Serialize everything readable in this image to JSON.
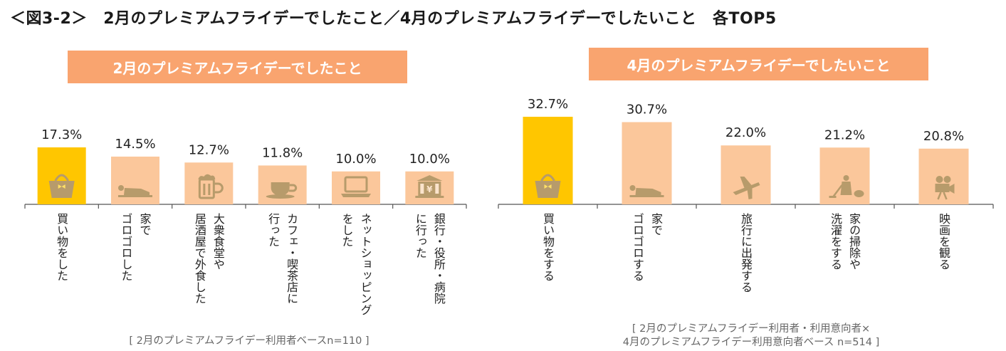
{
  "title": "＜図3-2＞　2月のプレミアムフライデーでしたこと／4月のプレミアムフライデーでしたいこと　各TOP5",
  "colors": {
    "banner": "#F9A46F",
    "top_bar": "#FFC600",
    "other_bar": "#FBC79B",
    "icon": "#B79B6B",
    "axis": "#555555"
  },
  "chart_data": [
    {
      "type": "bar",
      "title": "2月のプレミアムフライデーでしたこと",
      "categories": [
        [
          "買い物をした"
        ],
        [
          "家で",
          "ゴロゴロした"
        ],
        [
          "大衆食堂や",
          "居酒屋で外食した"
        ],
        [
          "カフェ・喫茶店に",
          "行った"
        ],
        [
          "ネットショッピング",
          "をした"
        ],
        [
          "銀行・役所・病院",
          "に行った"
        ]
      ],
      "values": [
        17.3,
        14.5,
        12.7,
        11.8,
        10.0,
        10.0
      ],
      "value_labels": [
        "17.3%",
        "14.5%",
        "12.7%",
        "11.8%",
        "10.0%",
        "10.0%"
      ],
      "icons": [
        "bag-icon",
        "lying-person-icon",
        "beer-mug-icon",
        "coffee-cup-icon",
        "laptop-icon",
        "bank-icon"
      ],
      "ylim": [
        0,
        17.3
      ],
      "note": "[ 2月のプレミアムフライデー利用者ベースn=110 ]"
    },
    {
      "type": "bar",
      "title": "4月のプレミアムフライデーでしたいこと",
      "categories": [
        [
          "買い物をする"
        ],
        [
          "家で",
          "ゴロゴロする"
        ],
        [
          "旅行に出発する"
        ],
        [
          "家の掃除や",
          "洗濯をする"
        ],
        [
          "映画を観る"
        ]
      ],
      "values": [
        32.7,
        30.7,
        22.0,
        21.2,
        20.8
      ],
      "value_labels": [
        "32.7%",
        "30.7%",
        "22.0%",
        "21.2%",
        "20.8%"
      ],
      "icons": [
        "bag-icon",
        "lying-person-icon",
        "airplane-icon",
        "vacuum-cleaner-icon",
        "movie-camera-icon"
      ],
      "ylim": [
        0,
        32.7
      ],
      "note": [
        "[ 2月のプレミアムフライデー利用者・利用意向者×",
        "4月のプレミアムフライデー利用意向者ベース n=514 ]"
      ]
    }
  ]
}
